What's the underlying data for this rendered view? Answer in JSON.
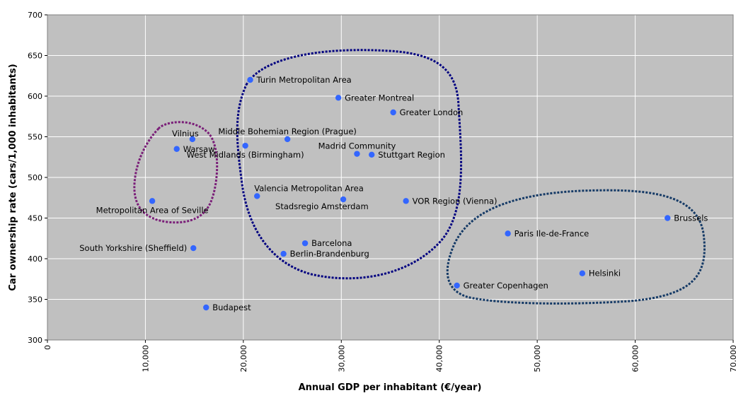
{
  "chart_data": {
    "type": "scatter",
    "title": "",
    "xlabel": "Annual GDP per inhabitant (€/year)",
    "ylabel": "Car ownership rate (cars/1,000 inhabitants)",
    "xlim": [
      0,
      70000
    ],
    "ylim": [
      300,
      700
    ],
    "x_ticks": [
      0,
      10000,
      20000,
      30000,
      40000,
      50000,
      60000,
      70000
    ],
    "x_tick_labels": [
      "0",
      "10,000",
      "20,000",
      "30,000",
      "40,000",
      "50,000",
      "60,000",
      "70,000"
    ],
    "y_ticks": [
      300,
      350,
      400,
      450,
      500,
      550,
      600,
      650,
      700
    ],
    "y_tick_labels": [
      "300",
      "350",
      "400",
      "450",
      "500",
      "550",
      "600",
      "650",
      "700"
    ],
    "grid": true,
    "point_color": "#3366ff",
    "plot_background": "#c0c0c0",
    "points": [
      {
        "label": "Turin Metropolitan Area",
        "x": 20700,
        "y": 620,
        "anchor": "right"
      },
      {
        "label": "Greater Montreal",
        "x": 29700,
        "y": 598,
        "anchor": "right"
      },
      {
        "label": "Greater London",
        "x": 35300,
        "y": 580,
        "anchor": "right"
      },
      {
        "label": "Middle Bohemian Region (Prague)",
        "x": 24500,
        "y": 547,
        "anchor": "above"
      },
      {
        "label": "Vilnius",
        "x": 14800,
        "y": 547,
        "anchor": "above-left"
      },
      {
        "label": "Warsaw",
        "x": 13200,
        "y": 535,
        "anchor": "right"
      },
      {
        "label": "West Midlands (Birmingham)",
        "x": 20200,
        "y": 539,
        "anchor": "below"
      },
      {
        "label": "Madrid Community",
        "x": 31600,
        "y": 529,
        "anchor": "above"
      },
      {
        "label": "Stuttgart Region",
        "x": 33100,
        "y": 528,
        "anchor": "right"
      },
      {
        "label": "Valencia Metropolitan Area",
        "x": 21400,
        "y": 477,
        "anchor": "above-right"
      },
      {
        "label": "Stadsregio Amsterdam",
        "x": 30200,
        "y": 473,
        "anchor": "below-left"
      },
      {
        "label": "VOR Region (Vienna)",
        "x": 36600,
        "y": 471,
        "anchor": "right"
      },
      {
        "label": "Metropolitan Area of Seville",
        "x": 10700,
        "y": 471,
        "anchor": "below"
      },
      {
        "label": "Brussels",
        "x": 63300,
        "y": 450,
        "anchor": "right"
      },
      {
        "label": "Paris Ile-de-France",
        "x": 47000,
        "y": 431,
        "anchor": "right"
      },
      {
        "label": "Barcelona",
        "x": 26300,
        "y": 419,
        "anchor": "right"
      },
      {
        "label": "South Yorkshire (Sheffield)",
        "x": 14900,
        "y": 413,
        "anchor": "left"
      },
      {
        "label": "Berlin-Brandenburg",
        "x": 24100,
        "y": 406,
        "anchor": "right"
      },
      {
        "label": "Helsinki",
        "x": 54600,
        "y": 382,
        "anchor": "right"
      },
      {
        "label": "Greater Copenhagen",
        "x": 41800,
        "y": 367,
        "anchor": "right"
      },
      {
        "label": "Budapest",
        "x": 16200,
        "y": 340,
        "anchor": "right"
      }
    ],
    "groups": [
      {
        "color": "#7a1e78"
      },
      {
        "color": "#000080"
      },
      {
        "color": "#153a66"
      }
    ]
  }
}
